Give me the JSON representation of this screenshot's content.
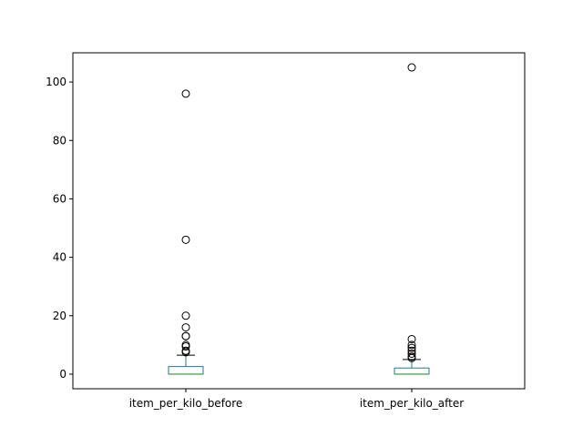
{
  "chart_data": {
    "type": "box",
    "title": "",
    "xlabel": "",
    "ylabel": "",
    "ylim": [
      -5,
      110
    ],
    "yticks": [
      0,
      20,
      40,
      60,
      80,
      100
    ],
    "grid": false,
    "categories": [
      "item_per_kilo_before",
      "item_per_kilo_after"
    ],
    "boxes": [
      {
        "label": "item_per_kilo_before",
        "whisker_low": 0,
        "q1": 0,
        "median": 0,
        "q3": 2.6,
        "whisker_high": 6.5,
        "outliers": [
          96,
          46,
          20,
          16,
          13,
          13,
          10,
          9.5,
          8,
          7.5
        ]
      },
      {
        "label": "item_per_kilo_after",
        "whisker_low": 0,
        "q1": 0,
        "median": 0,
        "q3": 2.1,
        "whisker_high": 5,
        "outliers": [
          105,
          12,
          10,
          9,
          8,
          7,
          6,
          5.5
        ]
      }
    ],
    "colors": {
      "box": "#1f77b4",
      "median": "#2ca02c",
      "whisker": "#000000",
      "outlier": "#000000"
    }
  }
}
